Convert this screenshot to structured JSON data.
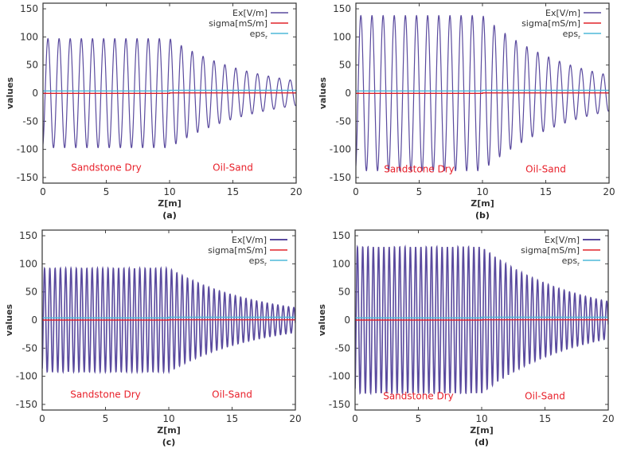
{
  "figure": {
    "panel_count": 4
  },
  "chart_data": [
    {
      "type": "line",
      "caption": "(a)",
      "xlabel": "Z[m]",
      "ylabel": "values",
      "xlim": [
        0,
        20
      ],
      "ylim": [
        -160,
        160
      ],
      "xticks": [
        0,
        5,
        10,
        15,
        20
      ],
      "yticks": [
        -150,
        -100,
        -50,
        0,
        50,
        100,
        150
      ],
      "legend_position": "top-right",
      "annotations": [
        {
          "text": "Sandstone Dry",
          "x": 5,
          "y": -138
        },
        {
          "text": "Oil-Sand",
          "x": 15,
          "y": -138
        }
      ],
      "series": [
        {
          "name": "Ex[V/m]",
          "legend_main": "Ex[V/m]",
          "legend_sub": "",
          "color": "#5a4a9e",
          "model": "damped_sine",
          "amplitude_layer1": 97,
          "amplitude_end": 22,
          "wavelength_layer1": 0.88,
          "wavelength_layer2": 0.86,
          "interface": 10
        },
        {
          "name": "sigma[mS/m]",
          "legend_main": "sigma[mS/m]",
          "legend_sub": "",
          "color": "#e0242a",
          "x": [
            0,
            10,
            10,
            20
          ],
          "y": [
            -0.5,
            -0.5,
            0.5,
            0.5
          ]
        },
        {
          "name": "eps_r",
          "legend_main": "eps",
          "legend_sub": "r",
          "color": "#4fb8d8",
          "x": [
            0,
            10,
            10,
            20
          ],
          "y": [
            4,
            4,
            5,
            5
          ]
        }
      ]
    },
    {
      "type": "line",
      "caption": "(b)",
      "xlabel": "Z[m]",
      "ylabel": "values",
      "xlim": [
        0,
        20
      ],
      "ylim": [
        -160,
        160
      ],
      "xticks": [
        0,
        5,
        10,
        15,
        20
      ],
      "yticks": [
        -150,
        -100,
        -50,
        0,
        50,
        100,
        150
      ],
      "legend_position": "top-right",
      "annotations": [
        {
          "text": "Sandstone Dry",
          "x": 5,
          "y": -141
        },
        {
          "text": "Oil-Sand",
          "x": 15,
          "y": -141
        }
      ],
      "series": [
        {
          "name": "Ex[V/m]",
          "legend_main": "Ex[V/m]",
          "legend_sub": "",
          "color": "#5a4a9e",
          "model": "damped_sine",
          "amplitude_layer1": 138,
          "amplitude_end": 32,
          "wavelength_layer1": 0.88,
          "wavelength_layer2": 0.86,
          "interface": 10
        },
        {
          "name": "sigma[mS/m]",
          "legend_main": "sigma[mS/m]",
          "legend_sub": "",
          "color": "#e0242a",
          "x": [
            0,
            10,
            10,
            20
          ],
          "y": [
            -0.5,
            -0.5,
            0.5,
            0.5
          ]
        },
        {
          "name": "eps_r",
          "legend_main": "eps",
          "legend_sub": "r",
          "color": "#4fb8d8",
          "x": [
            0,
            10,
            10,
            20
          ],
          "y": [
            4,
            4,
            5,
            5
          ]
        }
      ]
    },
    {
      "type": "line",
      "caption": "(c)",
      "xlabel": "Z[m]",
      "ylabel": "values",
      "xlim": [
        0,
        20
      ],
      "ylim": [
        -160,
        160
      ],
      "xticks": [
        0,
        5,
        10,
        15,
        20
      ],
      "yticks": [
        -150,
        -100,
        -50,
        0,
        50,
        100,
        150
      ],
      "legend_position": "top-right",
      "annotations": [
        {
          "text": "Sandstone Dry",
          "x": 5,
          "y": -138
        },
        {
          "text": "Oil-Sand",
          "x": 15,
          "y": -138
        }
      ],
      "series": [
        {
          "name": "Ex[V/m]",
          "legend_main": "Ex[V/m]",
          "legend_sub": "",
          "color": "#5a4a9e",
          "model": "damped_sine",
          "amplitude_layer1": 92,
          "amplitude_end": 22,
          "wavelength_layer1": 0.418,
          "wavelength_layer2": 0.42,
          "interface": 10
        },
        {
          "name": "sigma[mS/m]",
          "legend_main": "sigma[mS/m]",
          "legend_sub": "",
          "color": "#e0242a",
          "x": [
            0,
            10,
            10,
            20
          ],
          "y": [
            0,
            0,
            0.5,
            0.5
          ]
        },
        {
          "name": "eps_r",
          "legend_main": "eps",
          "legend_sub": "r",
          "color": "#4fb8d8",
          "x": [
            0,
            10,
            10,
            20
          ],
          "y": [
            4,
            4,
            5,
            5
          ]
        }
      ]
    },
    {
      "type": "line",
      "caption": "(d)",
      "xlabel": "Z[m]",
      "ylabel": "values",
      "xlim": [
        0,
        20
      ],
      "ylim": [
        -160,
        160
      ],
      "xticks": [
        0,
        5,
        10,
        15,
        20
      ],
      "yticks": [
        -150,
        -100,
        -50,
        0,
        50,
        100,
        150
      ],
      "legend_position": "top-right",
      "annotations": [
        {
          "text": "Sandstone Dry",
          "x": 5,
          "y": -141
        },
        {
          "text": "Oil-Sand",
          "x": 15,
          "y": -141
        }
      ],
      "series": [
        {
          "name": "Ex[V/m]",
          "legend_main": "Ex[V/m]",
          "legend_sub": "",
          "color": "#5a4a9e",
          "model": "damped_sine",
          "amplitude_layer1": 130,
          "amplitude_end": 33,
          "wavelength_layer1": 0.418,
          "wavelength_layer2": 0.42,
          "interface": 10
        },
        {
          "name": "sigma[mS/m]",
          "legend_main": "sigma[mS/m]",
          "legend_sub": "",
          "color": "#e0242a",
          "x": [
            0,
            10,
            10,
            20
          ],
          "y": [
            0,
            0,
            0.5,
            0.5
          ]
        },
        {
          "name": "eps_r",
          "legend_main": "eps",
          "legend_sub": "r",
          "color": "#4fb8d8",
          "x": [
            0,
            10,
            10,
            20
          ],
          "y": [
            4,
            4,
            5,
            5
          ]
        }
      ]
    }
  ]
}
